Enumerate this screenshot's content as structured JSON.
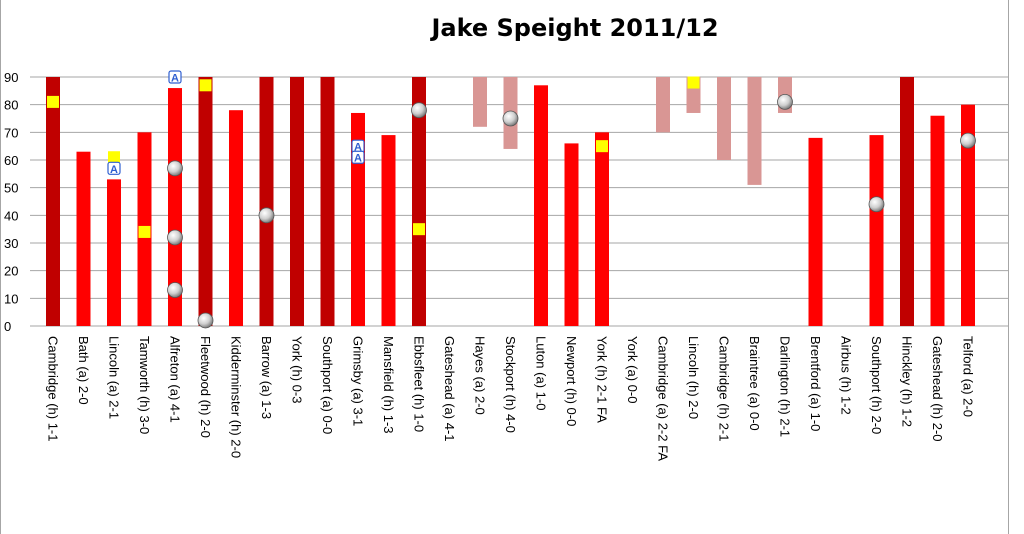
{
  "chart_data": {
    "type": "bar",
    "title": "Jake Speight 2011/12",
    "xlabel": "",
    "ylabel": "",
    "ylim": [
      0,
      90
    ],
    "yticks": [
      0,
      10,
      20,
      30,
      40,
      50,
      60,
      70,
      80,
      90
    ],
    "grid": true,
    "legend": "none",
    "categories": [
      "Cambridge (h) 1-1",
      "Bath (a) 2-0",
      "Lincoln (a) 2-1",
      "Tamworth (h) 3-0",
      "Alfreton (a) 4-1",
      "Fleetwood (h) 2-0",
      "Kidderminster (h) 2-0",
      "Barrow (a) 1-3",
      "York (h) 0-3",
      "Southport (a) 0-0",
      "Grimsby (a) 3-1",
      "Mansfield (h) 1-3",
      "Ebbsfleet (h) 1-0",
      "Gateshead (a) 4-1",
      "Hayes (a) 2-0",
      "Stockport (h) 4-0",
      "Luton (a) 1-0",
      "Newport (h) 0-0",
      "York (h) 2-1 FA",
      "York (a) 0-0",
      "Cambridge (a) 2-2 FA",
      "Lincoln (h) 2-0",
      "Cambridge (h) 2-1",
      "Braintree (a) 0-0",
      "Darlington (h) 2-1",
      "Brentford (a) 1-0",
      "Airbus (h) 1-2",
      "Southport (h) 2-0",
      "Hinckley (h) 1-2",
      "Gateshead (h) 2-0",
      "Telford (a) 2-0"
    ],
    "appearances": [
      {
        "from": 0,
        "to": 90,
        "kind": "full"
      },
      {
        "from": 0,
        "to": 63,
        "kind": "sub-off"
      },
      {
        "from": 0,
        "to": 53,
        "kind": "sub-off"
      },
      {
        "from": 0,
        "to": 70,
        "kind": "sub-off"
      },
      {
        "from": 0,
        "to": 86,
        "kind": "sub-off"
      },
      {
        "from": 0,
        "to": 90,
        "kind": "full"
      },
      {
        "from": 0,
        "to": 78,
        "kind": "sub-off"
      },
      {
        "from": 0,
        "to": 90,
        "kind": "full"
      },
      {
        "from": 0,
        "to": 90,
        "kind": "full"
      },
      {
        "from": 0,
        "to": 90,
        "kind": "full"
      },
      {
        "from": 0,
        "to": 77,
        "kind": "sub-off"
      },
      {
        "from": 0,
        "to": 69,
        "kind": "sub-off"
      },
      {
        "from": 0,
        "to": 90,
        "kind": "full"
      },
      null,
      {
        "from": 72,
        "to": 90,
        "kind": "sub-on"
      },
      {
        "from": 64,
        "to": 90,
        "kind": "sub-on"
      },
      {
        "from": 0,
        "to": 87,
        "kind": "sub-off"
      },
      {
        "from": 0,
        "to": 66,
        "kind": "sub-off"
      },
      {
        "from": 0,
        "to": 70,
        "kind": "sub-off"
      },
      null,
      {
        "from": 70,
        "to": 90,
        "kind": "sub-on"
      },
      {
        "from": 77,
        "to": 90,
        "kind": "sub-on"
      },
      {
        "from": 60,
        "to": 90,
        "kind": "sub-on"
      },
      {
        "from": 51,
        "to": 90,
        "kind": "sub-on"
      },
      {
        "from": 77,
        "to": 90,
        "kind": "sub-on"
      },
      {
        "from": 0,
        "to": 68,
        "kind": "sub-off"
      },
      null,
      {
        "from": 0,
        "to": 69,
        "kind": "sub-off"
      },
      {
        "from": 0,
        "to": 90,
        "kind": "full"
      },
      {
        "from": 0,
        "to": 76,
        "kind": "sub-off"
      },
      {
        "from": 0,
        "to": 80,
        "kind": "sub-off"
      }
    ],
    "goals": [
      {
        "match": 4,
        "minute": 57
      },
      {
        "match": 4,
        "minute": 32
      },
      {
        "match": 4,
        "minute": 13
      },
      {
        "match": 5,
        "minute": 2
      },
      {
        "match": 7,
        "minute": 40
      },
      {
        "match": 12,
        "minute": 78
      },
      {
        "match": 15,
        "minute": 75
      },
      {
        "match": 24,
        "minute": 81
      },
      {
        "match": 27,
        "minute": 44
      },
      {
        "match": 30,
        "minute": 67
      }
    ],
    "yellow_cards": [
      {
        "match": 0,
        "minute": 81
      },
      {
        "match": 2,
        "minute": 61
      },
      {
        "match": 3,
        "minute": 34
      },
      {
        "match": 5,
        "minute": 87
      },
      {
        "match": 12,
        "minute": 35
      },
      {
        "match": 18,
        "minute": 65
      },
      {
        "match": 21,
        "minute": 88
      }
    ],
    "assists": [
      {
        "match": 2,
        "minute": 57
      },
      {
        "match": 4,
        "minute": 90
      },
      {
        "match": 10,
        "minute": 65
      },
      {
        "match": 10,
        "minute": 61
      }
    ],
    "assist_marker_text": "A",
    "colors": {
      "full": "#c00000",
      "sub-off": "#ff0000",
      "sub-on": "#d99694",
      "yellow_card": "#ffff00",
      "assist": "#2f5fd0",
      "grid": "#a6a6a6"
    },
    "markers": {
      "goal": "football-icon",
      "yellow_card": "yellow-card-icon",
      "assist": "assist-badge-icon"
    }
  }
}
